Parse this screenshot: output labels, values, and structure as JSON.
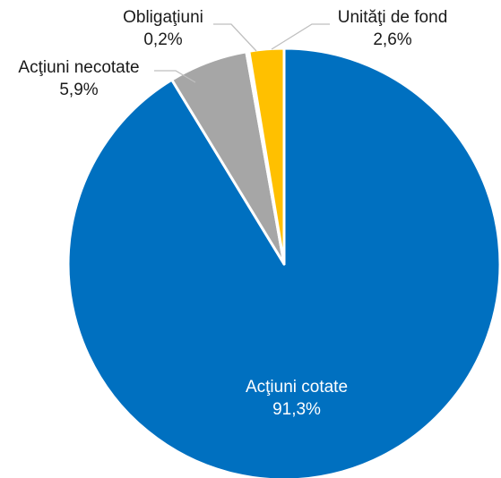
{
  "chart_data": {
    "type": "pie",
    "title": "",
    "slices": [
      {
        "label": "Acţiuni cotate",
        "value": 91.3,
        "display": "91,3%",
        "color": "#0070C0"
      },
      {
        "label": "Acţiuni necotate",
        "value": 5.9,
        "display": "5,9%",
        "color": "#A6A6A6"
      },
      {
        "label": "Obligaţiuni",
        "value": 0.2,
        "display": "0,2%",
        "color": "#5B9BD5"
      },
      {
        "label": "Unităţi de fond",
        "value": 2.6,
        "display": "2,6%",
        "color": "#FFC000"
      }
    ],
    "start_angle_deg": 0,
    "direction": "clockwise",
    "data_labels": "category-and-percent",
    "legend": "none"
  }
}
